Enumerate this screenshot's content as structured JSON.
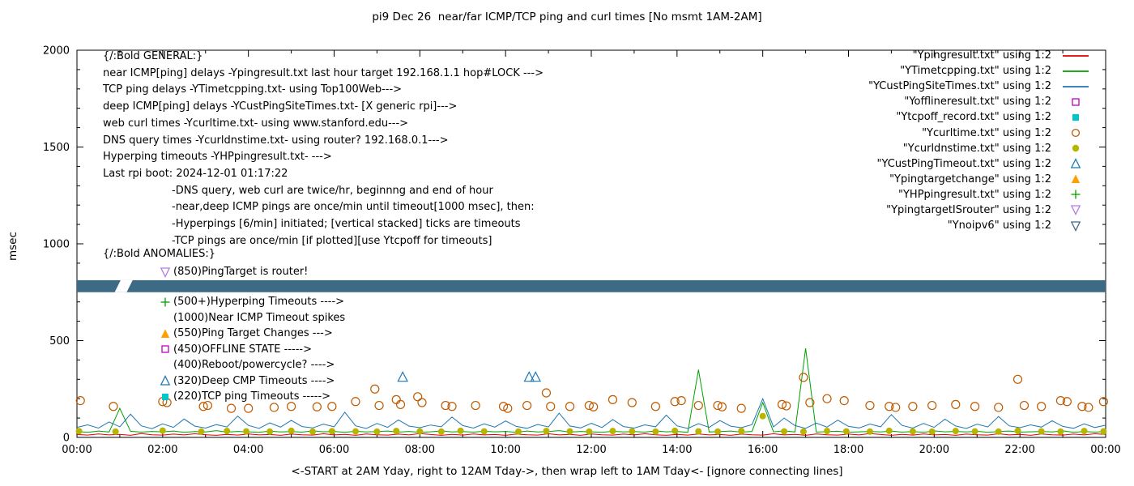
{
  "chart_data": {
    "type": "line",
    "title": "pi9 Dec 26  near/far ICMP/TCP ping and curl times [No msmt 1AM-2AM]",
    "xlabel": "<-START at 2AM Yday, right to 12AM Tday->, then wrap left to 1AM Tday<- [ignore connecting lines]",
    "ylabel": "msec",
    "ylim": [
      0,
      2000
    ],
    "xlim_hours": [
      0,
      24
    ],
    "grid": false,
    "x_tick_hours": [
      0,
      2,
      4,
      6,
      8,
      10,
      12,
      14,
      16,
      18,
      20,
      22,
      24
    ],
    "x_tick_labels": [
      "00:00",
      "02:00",
      "04:00",
      "06:00",
      "08:00",
      "10:00",
      "12:00",
      "14:00",
      "16:00",
      "18:00",
      "20:00",
      "22:00",
      "00:00"
    ],
    "y_tick_values": [
      0,
      500,
      1000,
      1500,
      2000
    ],
    "y_tick_labels": [
      "0",
      "500",
      "1000",
      "1500",
      "2000"
    ],
    "legend": {
      "position": "top-right",
      "entries": [
        {
          "label": "\"Ypingresult.txt\" using 1:2",
          "marker": "line",
          "color": "#e10000"
        },
        {
          "label": "\"YTimetcpping.txt\" using 1:2",
          "marker": "line",
          "color": "#00a000"
        },
        {
          "label": "\"YCustPingSiteTimes.txt\" using 1:2",
          "marker": "line",
          "color": "#1f77b4"
        },
        {
          "label": "\"Yofflineresult.txt\" using 1:2",
          "marker": "open-square",
          "color": "#c000c0"
        },
        {
          "label": "\"Ytcpoff_record.txt\" using 1:2",
          "marker": "filled-square",
          "color": "#00c8c8"
        },
        {
          "label": "\"Ycurltime.txt\" using 1:2",
          "marker": "open-circle",
          "color": "#c05a00"
        },
        {
          "label": "\"Ycurldnstime.txt\" using 1:2",
          "marker": "filled-circle",
          "color": "#b8b400"
        },
        {
          "label": "\"YCustPingTimeout.txt\" using 1:2",
          "marker": "open-triangle-up",
          "color": "#1f77b4"
        },
        {
          "label": "\"Ypingtargetchange\" using 1:2",
          "marker": "filled-triangle-up",
          "color": "#ffa000"
        },
        {
          "label": "\"YHPpingresult.txt\" using 1:2",
          "marker": "plus",
          "color": "#00a000"
        },
        {
          "label": "\"YpingtargetISrouter\" using 1:2",
          "marker": "open-triangle-down",
          "color": "#b57ae6"
        },
        {
          "label": "\"Ynoipv6\" using 1:2",
          "marker": "open-triangle-down",
          "color": "#3d6a85"
        }
      ]
    },
    "line_series": [
      {
        "name": "Ypingresult.txt",
        "color": "#e10000",
        "x_step_hours": 0.25,
        "values": [
          15,
          12,
          18,
          13,
          16,
          11,
          20,
          14,
          12,
          17,
          13,
          19,
          14,
          11,
          16,
          12,
          18,
          13,
          15,
          11,
          17,
          14,
          12,
          19,
          13,
          16,
          11,
          18,
          14,
          12,
          17,
          13,
          20,
          15,
          11,
          16,
          12,
          18,
          13,
          15,
          11,
          17,
          14,
          12,
          19,
          13,
          16,
          11,
          18,
          14,
          12,
          17,
          13,
          19,
          14,
          11,
          16,
          12,
          18,
          13,
          15,
          11,
          17,
          14,
          12,
          19,
          13,
          16,
          11,
          18,
          14,
          12,
          17,
          13,
          20,
          15,
          11,
          16,
          12,
          18,
          13,
          15,
          11,
          17,
          14,
          12,
          19,
          13,
          16,
          11,
          18,
          14,
          12,
          17,
          13,
          19,
          15
        ]
      },
      {
        "name": "YTimetcpping.txt",
        "color": "#00a000",
        "x_step_hours": 0.25,
        "values": [
          30,
          26,
          33,
          28,
          150,
          32,
          27,
          31,
          29,
          33,
          26,
          30,
          28,
          35,
          27,
          31,
          29,
          26,
          33,
          28,
          30,
          27,
          34,
          29,
          31,
          26,
          32,
          28,
          30,
          33,
          27,
          31,
          26,
          29,
          34,
          28,
          30,
          27,
          32,
          29,
          31,
          26,
          33,
          28,
          30,
          35,
          27,
          31,
          29,
          26,
          32,
          28,
          30,
          27,
          34,
          29,
          31,
          26,
          350,
          28,
          30,
          33,
          27,
          31,
          180,
          29,
          34,
          28,
          460,
          27,
          30,
          32,
          26,
          29,
          31,
          28,
          33,
          27,
          30,
          26,
          34,
          29,
          31,
          28,
          32,
          26,
          30,
          33,
          27,
          29,
          31,
          28,
          34,
          26,
          30,
          27,
          31
        ]
      },
      {
        "name": "YCustPingSiteTimes.txt",
        "color": "#1f77b4",
        "x_step_hours": 0.25,
        "values": [
          52,
          65,
          48,
          80,
          55,
          120,
          60,
          45,
          70,
          52,
          95,
          58,
          48,
          66,
          54,
          110,
          62,
          47,
          75,
          53,
          88,
          56,
          49,
          68,
          55,
          130,
          60,
          46,
          72,
          52,
          90,
          58,
          50,
          64,
          55,
          105,
          61,
          48,
          70,
          53,
          85,
          57,
          47,
          67,
          54,
          125,
          59,
          49,
          73,
          51,
          92,
          56,
          48,
          65,
          55,
          115,
          60,
          46,
          71,
          52,
          87,
          58,
          50,
          66,
          200,
          54,
          100,
          61,
          47,
          74,
          53,
          89,
          57,
          49,
          69,
          55,
          118,
          62,
          48,
          72,
          52,
          94,
          59,
          46,
          68,
          54,
          108,
          60,
          50,
          65,
          53,
          86,
          57,
          47,
          70,
          51,
          63
        ]
      }
    ],
    "scatter_series": [
      {
        "name": "Ycurltime.txt",
        "marker": "open-circle",
        "color": "#c05a00",
        "points": [
          [
            0.08,
            190
          ],
          [
            0.85,
            160
          ],
          [
            2.0,
            185
          ],
          [
            2.1,
            180
          ],
          [
            2.95,
            160
          ],
          [
            3.05,
            165
          ],
          [
            3.6,
            150
          ],
          [
            4.0,
            150
          ],
          [
            4.6,
            155
          ],
          [
            5.0,
            160
          ],
          [
            5.6,
            158
          ],
          [
            5.95,
            160
          ],
          [
            6.5,
            185
          ],
          [
            6.95,
            250
          ],
          [
            7.05,
            165
          ],
          [
            7.45,
            195
          ],
          [
            7.55,
            170
          ],
          [
            7.95,
            210
          ],
          [
            8.05,
            180
          ],
          [
            8.6,
            165
          ],
          [
            8.75,
            160
          ],
          [
            9.3,
            165
          ],
          [
            9.95,
            160
          ],
          [
            10.05,
            150
          ],
          [
            10.5,
            165
          ],
          [
            10.95,
            230
          ],
          [
            11.05,
            160
          ],
          [
            11.5,
            160
          ],
          [
            11.95,
            165
          ],
          [
            12.05,
            158
          ],
          [
            12.5,
            195
          ],
          [
            12.95,
            180
          ],
          [
            13.5,
            160
          ],
          [
            13.95,
            185
          ],
          [
            14.1,
            190
          ],
          [
            14.5,
            165
          ],
          [
            14.95,
            165
          ],
          [
            15.05,
            158
          ],
          [
            15.5,
            150
          ],
          [
            16.45,
            170
          ],
          [
            16.55,
            163
          ],
          [
            16.95,
            310
          ],
          [
            17.1,
            180
          ],
          [
            17.5,
            200
          ],
          [
            17.9,
            190
          ],
          [
            18.5,
            165
          ],
          [
            18.95,
            160
          ],
          [
            19.1,
            155
          ],
          [
            19.5,
            160
          ],
          [
            19.95,
            165
          ],
          [
            20.5,
            170
          ],
          [
            20.95,
            160
          ],
          [
            21.5,
            155
          ],
          [
            21.95,
            300
          ],
          [
            22.1,
            165
          ],
          [
            22.5,
            160
          ],
          [
            22.95,
            190
          ],
          [
            23.1,
            185
          ],
          [
            23.45,
            160
          ],
          [
            23.6,
            155
          ],
          [
            23.95,
            185
          ]
        ]
      },
      {
        "name": "Ycurldnstime.txt",
        "marker": "filled-circle",
        "color": "#b8b400",
        "points": [
          [
            0.05,
            32
          ],
          [
            0.9,
            30
          ],
          [
            2.0,
            35
          ],
          [
            2.9,
            30
          ],
          [
            3.5,
            33
          ],
          [
            3.95,
            31
          ],
          [
            4.5,
            30
          ],
          [
            5.0,
            34
          ],
          [
            5.5,
            30
          ],
          [
            5.95,
            32
          ],
          [
            6.5,
            31
          ],
          [
            7.0,
            30
          ],
          [
            7.45,
            33
          ],
          [
            8.0,
            31
          ],
          [
            8.5,
            30
          ],
          [
            8.95,
            34
          ],
          [
            9.5,
            31
          ],
          [
            10.3,
            30
          ],
          [
            10.95,
            33
          ],
          [
            11.5,
            31
          ],
          [
            11.95,
            30
          ],
          [
            12.5,
            33
          ],
          [
            12.95,
            31
          ],
          [
            13.5,
            30
          ],
          [
            13.95,
            34
          ],
          [
            14.5,
            31
          ],
          [
            14.95,
            30
          ],
          [
            15.5,
            33
          ],
          [
            16.0,
            110
          ],
          [
            16.5,
            31
          ],
          [
            16.95,
            30
          ],
          [
            17.5,
            33
          ],
          [
            17.95,
            31
          ],
          [
            18.5,
            30
          ],
          [
            18.95,
            34
          ],
          [
            19.5,
            31
          ],
          [
            19.95,
            30
          ],
          [
            20.5,
            33
          ],
          [
            20.95,
            31
          ],
          [
            21.5,
            30
          ],
          [
            21.95,
            34
          ],
          [
            22.5,
            31
          ],
          [
            22.95,
            30
          ],
          [
            23.5,
            33
          ],
          [
            23.95,
            31
          ]
        ]
      },
      {
        "name": "YCustPingTimeout.txt",
        "marker": "open-triangle-up",
        "color": "#1f77b4",
        "points": [
          [
            7.6,
            310
          ],
          [
            10.55,
            310
          ],
          [
            10.7,
            310
          ]
        ]
      }
    ],
    "band": {
      "name": "Ynoipv6",
      "color": "#3d6a85",
      "y_low_msec": 750,
      "y_high_msec": 812,
      "x_range_hours": [
        0,
        24
      ],
      "gap_note": "No msmt 1AM-2AM",
      "gap_top_hours": [
        1.02,
        1.3
      ],
      "gap_bottom_hours": [
        0.88,
        1.16
      ]
    },
    "annotations": {
      "general_lines": [
        {
          "text": "{/:Bold GENERAL:}",
          "indent": false
        },
        {
          "text": "near ICMP[ping] delays -Ypingresult.txt last hour target 192.168.1.1 hop#LOCK --->",
          "indent": false
        },
        {
          "text": "TCP ping delays -YTimetcpping.txt- using Top100Web--->",
          "indent": false
        },
        {
          "text": "deep ICMP[ping] delays -YCustPingSiteTimes.txt- [X generic rpi]--->",
          "indent": false
        },
        {
          "text": "web curl times -Ycurltime.txt- using www.stanford.edu--->",
          "indent": false
        },
        {
          "text": "DNS query times -Ycurldnstime.txt- using router? 192.168.0.1--->",
          "indent": false
        },
        {
          "text": "Hyperping timeouts -YHPpingresult.txt- --->",
          "indent": false
        },
        {
          "text": "Last rpi boot: 2024-12-01 01:17:22",
          "indent": false
        },
        {
          "text": "-DNS query, web curl are twice/hr, beginnng and end of hour",
          "indent": true
        },
        {
          "text": "-near,deep ICMP pings are once/min until timeout[1000 msec], then:",
          "indent": true
        },
        {
          "text": "-Hyperpings [6/min] initiated; [vertical stacked] ticks are timeouts",
          "indent": true
        },
        {
          "text": "-TCP pings are once/min [if plotted][use Ytcpoff for timeouts]",
          "indent": true
        }
      ],
      "anomalies_header": "{/:Bold ANOMALIES:}",
      "anomalies": [
        {
          "marker": "open-triangle-down",
          "color": "#b57ae6",
          "text": "(850)PingTarget is router!"
        },
        {
          "marker": "plus",
          "color": "#00a000",
          "text": "(500+)Hyperping Timeouts ---->"
        },
        {
          "marker": null,
          "color": null,
          "text": "(1000)Near ICMP Timeout spikes"
        },
        {
          "marker": "filled-triangle-up",
          "color": "#ffa000",
          "text": "(550)Ping Target Changes --->"
        },
        {
          "marker": "open-square",
          "color": "#c000c0",
          "text": "(450)OFFLINE STATE ----->"
        },
        {
          "marker": null,
          "color": null,
          "text": "(400)Reboot/powercycle? ---->"
        },
        {
          "marker": "open-triangle-up",
          "color": "#1f77b4",
          "text": "(320)Deep CMP Timeouts ---->"
        },
        {
          "marker": "filled-square",
          "color": "#00c8c8",
          "text": "(220)TCP ping Timeouts ----->"
        }
      ]
    }
  }
}
